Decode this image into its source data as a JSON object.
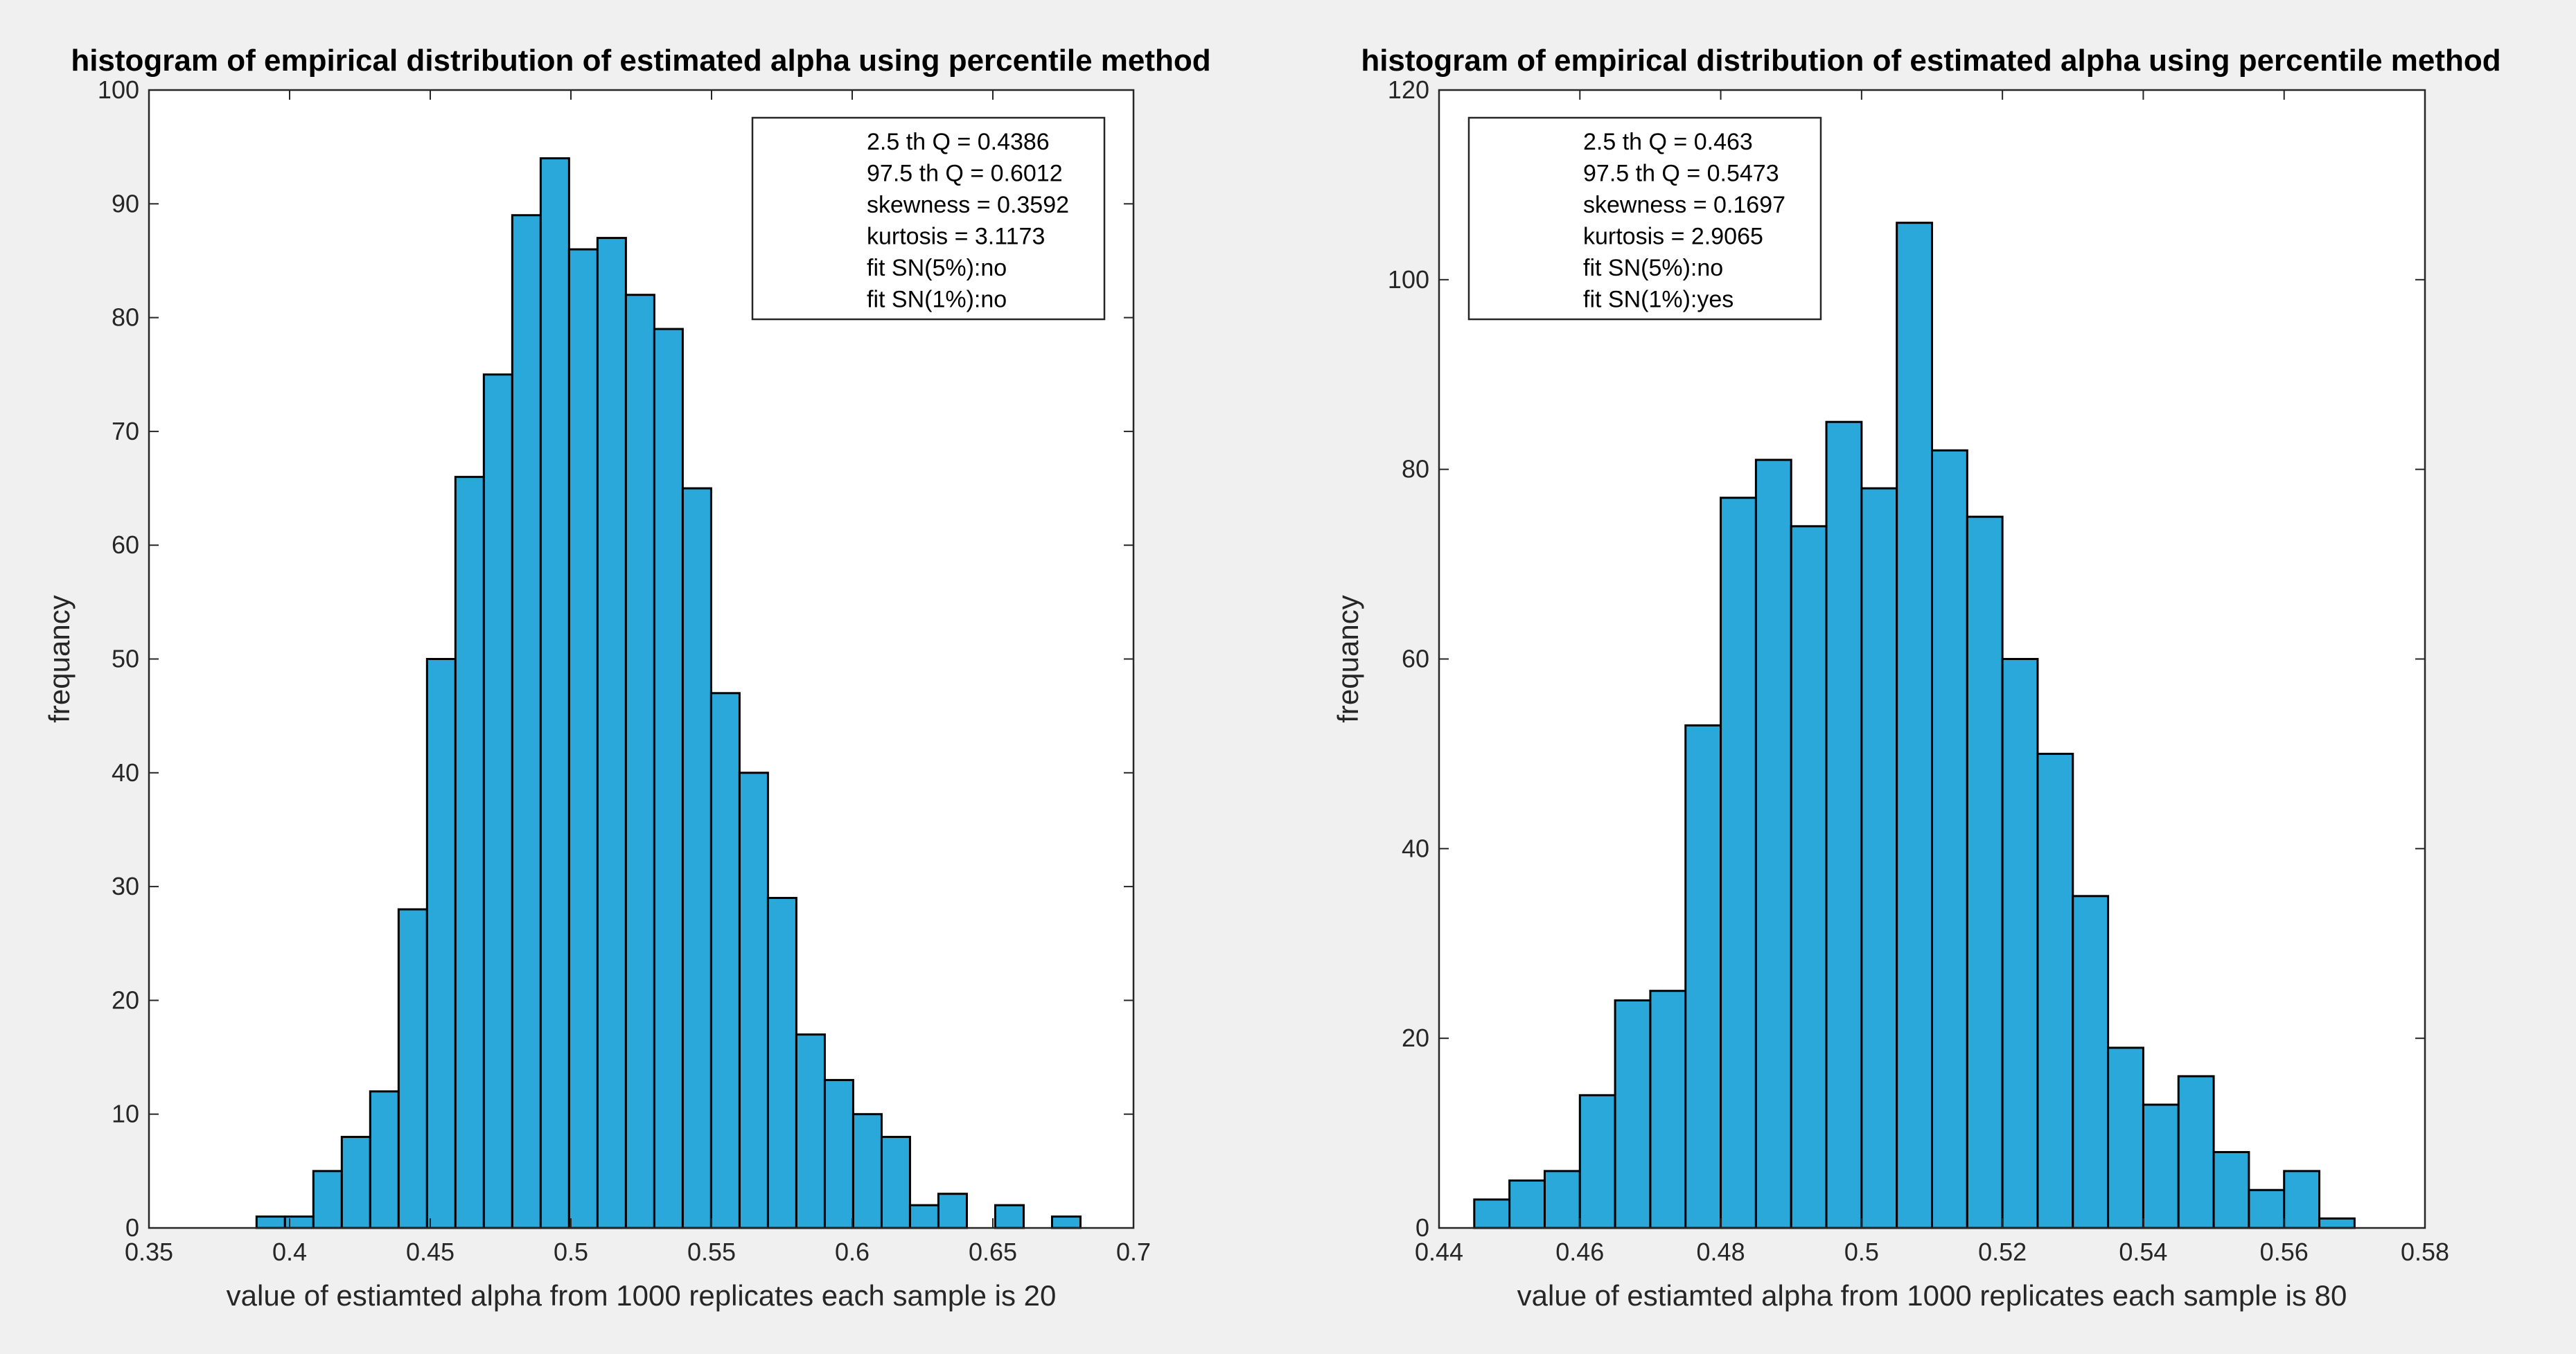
{
  "figure": {
    "background": "#f0f0f0",
    "plot_background": "#ffffff",
    "bar_color": "#2aa8d9",
    "bar_edge": "#000000"
  },
  "chart_data": [
    {
      "type": "bar",
      "title": "histogram of empirical distribution of estimated alpha using percentile method",
      "xlabel": "value of estiamted alpha from 1000 replicates each sample is 20",
      "ylabel": "frequancy",
      "xlim": [
        0.35,
        0.7
      ],
      "ylim": [
        0,
        100
      ],
      "xticks": [
        "0.35",
        "0.4",
        "0.45",
        "0.5",
        "0.55",
        "0.6",
        "0.65",
        "0.7"
      ],
      "yticks": [
        "0",
        "10",
        "20",
        "30",
        "40",
        "50",
        "60",
        "70",
        "80",
        "90",
        "100"
      ],
      "bin_width": 0.0101,
      "bin_centers": [
        0.3933,
        0.4034,
        0.4135,
        0.4236,
        0.4337,
        0.4438,
        0.4539,
        0.464,
        0.4741,
        0.4842,
        0.4943,
        0.5044,
        0.5145,
        0.5246,
        0.5347,
        0.5448,
        0.5549,
        0.565,
        0.5751,
        0.5852,
        0.5953,
        0.6054,
        0.6155,
        0.6256,
        0.6357,
        0.6458,
        0.6559,
        0.666,
        0.6761
      ],
      "values": [
        1,
        1,
        5,
        8,
        12,
        28,
        50,
        66,
        75,
        89,
        94,
        86,
        87,
        82,
        79,
        65,
        47,
        40,
        29,
        17,
        13,
        10,
        8,
        2,
        3,
        0,
        2,
        0,
        1
      ],
      "legend": [
        "2.5 th Q = 0.4386",
        "97.5 th Q = 0.6012",
        "skewness =  0.3592",
        "kurtosis = 3.1173",
        "fit SN(5%):no",
        "fit SN(1%):no"
      ],
      "legend_placement": "top-right",
      "grid": false
    },
    {
      "type": "bar",
      "title": "histogram of empirical distribution of estimated alpha using percentile method",
      "xlabel": "value of estiamted alpha from 1000 replicates each sample is 80",
      "ylabel": "frequancy",
      "xlim": [
        0.44,
        0.58
      ],
      "ylim": [
        0,
        120
      ],
      "xticks": [
        "0.44",
        "0.46",
        "0.48",
        "0.5",
        "0.52",
        "0.54",
        "0.56",
        "0.58"
      ],
      "yticks": [
        "0",
        "20",
        "40",
        "60",
        "80",
        "100",
        "120"
      ],
      "bin_width": 0.005,
      "bin_centers": [
        0.4475,
        0.4525,
        0.4575,
        0.4625,
        0.4675,
        0.4725,
        0.4775,
        0.4825,
        0.4875,
        0.4925,
        0.4975,
        0.5025,
        0.5075,
        0.5125,
        0.5175,
        0.5225,
        0.5275,
        0.5325,
        0.5375,
        0.5425,
        0.5475,
        0.5525,
        0.5575,
        0.5625,
        0.5675
      ],
      "values": [
        3,
        5,
        6,
        14,
        24,
        25,
        53,
        77,
        81,
        74,
        85,
        78,
        106,
        82,
        75,
        60,
        50,
        35,
        19,
        13,
        16,
        8,
        4,
        6,
        1
      ],
      "legend": [
        "2.5 th Q = 0.463",
        "97.5 th Q = 0.5473",
        "skewness =  0.1697",
        "kurtosis = 2.9065",
        "fit SN(5%):no",
        "fit SN(1%):yes"
      ],
      "legend_placement": "top-left",
      "grid": false
    }
  ]
}
